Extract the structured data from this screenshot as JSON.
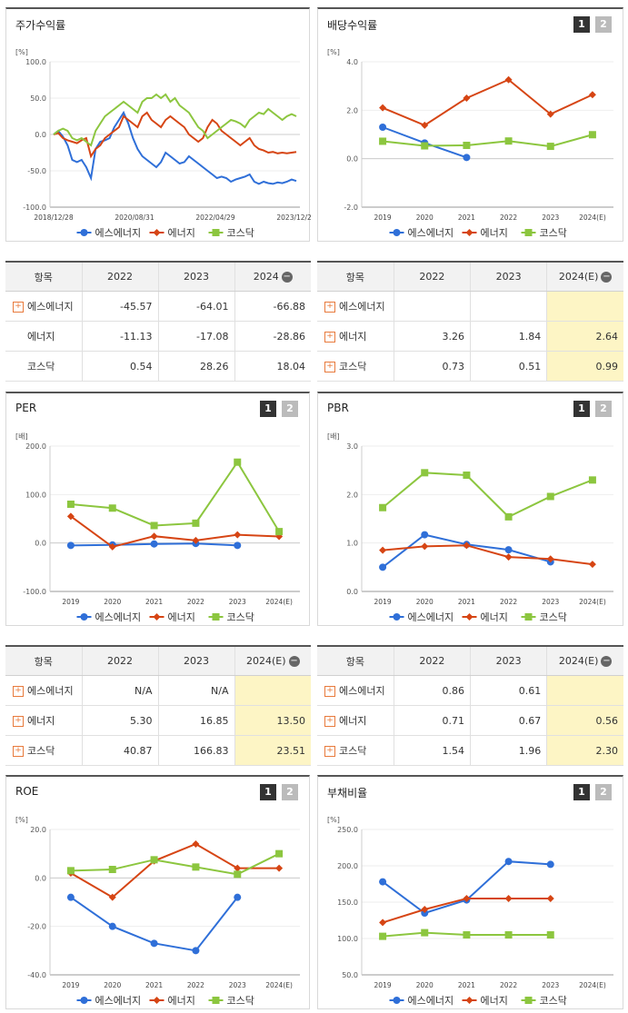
{
  "common": {
    "legend": [
      "에스에너지",
      "에너지",
      "코스닥"
    ],
    "colors": [
      "#2f6fd8",
      "#d64514",
      "#8cc63f"
    ],
    "tab1": "1",
    "tab2": "2"
  },
  "panels": {
    "p1": {
      "title": "주가수익률"
    },
    "p2": {
      "title": "배당수익률"
    },
    "p3": {
      "title": "PER"
    },
    "p4": {
      "title": "PBR"
    },
    "p5": {
      "title": "ROE"
    },
    "p6": {
      "title": "부채비율"
    }
  },
  "chart_data": [
    {
      "id": "c1",
      "type": "line",
      "title": "주가수익률",
      "ylabel": "[%]",
      "ylim": [
        -100,
        100
      ],
      "yticks": [
        "100.0",
        "50.0",
        "0.0",
        "-50.0",
        "-100.0"
      ],
      "xticks": [
        "2018/12/28",
        "2020/08/31",
        "2022/04/29",
        "2023/12/28"
      ],
      "series": [
        {
          "name": "에스에너지",
          "values": [
            0,
            5,
            -3,
            -15,
            -35,
            -38,
            -35,
            -45,
            -60,
            -20,
            -10,
            -8,
            -5,
            10,
            20,
            30,
            15,
            -5,
            -20,
            -30,
            -35,
            -40,
            -45,
            -38,
            -25,
            -30,
            -35,
            -40,
            -38,
            -30,
            -35,
            -40,
            -45,
            -50,
            -55,
            -60,
            -58,
            -60,
            -65,
            -62,
            -60,
            -58,
            -55,
            -65,
            -68,
            -65,
            -67,
            -68,
            -66,
            -67,
            -65,
            -62,
            -64
          ]
        },
        {
          "name": "에너지",
          "values": [
            0,
            2,
            -5,
            -8,
            -10,
            -12,
            -8,
            -5,
            -30,
            -20,
            -15,
            -5,
            0,
            5,
            10,
            25,
            20,
            15,
            10,
            25,
            30,
            20,
            15,
            10,
            20,
            25,
            20,
            15,
            10,
            0,
            -5,
            -10,
            -5,
            10,
            20,
            15,
            5,
            0,
            -5,
            -10,
            -15,
            -10,
            -5,
            -15,
            -20,
            -22,
            -25,
            -24,
            -26,
            -25,
            -26,
            -25,
            -24
          ]
        },
        {
          "name": "코스닥",
          "values": [
            0,
            5,
            8,
            5,
            -5,
            -8,
            -5,
            -10,
            -15,
            5,
            15,
            25,
            30,
            35,
            40,
            45,
            40,
            35,
            30,
            45,
            50,
            50,
            55,
            50,
            55,
            45,
            50,
            40,
            35,
            30,
            20,
            10,
            5,
            -5,
            0,
            5,
            10,
            15,
            20,
            18,
            15,
            10,
            20,
            25,
            30,
            28,
            35,
            30,
            25,
            20,
            25,
            28,
            25
          ]
        }
      ]
    },
    {
      "id": "c2",
      "type": "line",
      "title": "배당수익률",
      "ylabel": "[%]",
      "ylim": [
        -2,
        4
      ],
      "yticks": [
        "4.0",
        "2.0",
        "0.0",
        "-2.0"
      ],
      "categories": [
        "2019",
        "2020",
        "2021",
        "2022",
        "2023",
        "2024(E)"
      ],
      "series": [
        {
          "name": "에스에너지",
          "values": [
            1.3,
            0.65,
            0.05,
            null,
            null,
            null
          ]
        },
        {
          "name": "에너지",
          "values": [
            2.1,
            1.38,
            2.5,
            3.26,
            1.84,
            2.64
          ]
        },
        {
          "name": "코스닥",
          "values": [
            0.72,
            0.53,
            0.55,
            0.73,
            0.51,
            0.99
          ]
        }
      ]
    },
    {
      "id": "c3",
      "type": "line",
      "title": "PER",
      "ylabel": "[배]",
      "ylim": [
        -100,
        200
      ],
      "yticks": [
        "200.0",
        "100.0",
        "0.0",
        "-100.0"
      ],
      "categories": [
        "2019",
        "2020",
        "2021",
        "2022",
        "2023",
        "2024(E)"
      ],
      "series": [
        {
          "name": "에스에너지",
          "values": [
            -5,
            -4,
            -2,
            -1,
            -5,
            null
          ]
        },
        {
          "name": "에너지",
          "values": [
            55,
            -8,
            14,
            5.3,
            16.85,
            13.5
          ]
        },
        {
          "name": "코스닥",
          "values": [
            80,
            72,
            36,
            40.87,
            166.83,
            23.51
          ]
        }
      ]
    },
    {
      "id": "c4",
      "type": "line",
      "title": "PBR",
      "ylabel": "[배]",
      "ylim": [
        0,
        3
      ],
      "yticks": [
        "3.0",
        "2.0",
        "1.0",
        "0.0"
      ],
      "categories": [
        "2019",
        "2020",
        "2021",
        "2022",
        "2023",
        "2024(E)"
      ],
      "series": [
        {
          "name": "에스에너지",
          "values": [
            0.5,
            1.17,
            0.97,
            0.86,
            0.61,
            null
          ]
        },
        {
          "name": "에너지",
          "values": [
            0.85,
            0.93,
            0.95,
            0.71,
            0.67,
            0.56
          ]
        },
        {
          "name": "코스닥",
          "values": [
            1.73,
            2.45,
            2.4,
            1.54,
            1.96,
            2.3
          ]
        }
      ]
    },
    {
      "id": "c5",
      "type": "line",
      "title": "ROE",
      "ylabel": "[%]",
      "ylim": [
        -40,
        20
      ],
      "yticks": [
        "20.0",
        "0.0",
        "-20.0",
        "-40.0"
      ],
      "categories": [
        "2019",
        "2020",
        "2021",
        "2022",
        "2023",
        "2024(E)"
      ],
      "series": [
        {
          "name": "에스에너지",
          "values": [
            -8,
            -20,
            -27,
            -30,
            -8,
            null
          ]
        },
        {
          "name": "에너지",
          "values": [
            2,
            -8,
            7,
            14,
            4,
            4
          ]
        },
        {
          "name": "코스닥",
          "values": [
            3,
            3.5,
            7.5,
            4.5,
            1.5,
            10
          ]
        }
      ]
    },
    {
      "id": "c6",
      "type": "line",
      "title": "부채비율",
      "ylabel": "[%]",
      "ylim": [
        50,
        250
      ],
      "yticks": [
        "250.0",
        "200.0",
        "150.0",
        "100.0",
        "50.0"
      ],
      "categories": [
        "2019",
        "2020",
        "2021",
        "2022",
        "2023",
        "2024(E)"
      ],
      "series": [
        {
          "name": "에스에너지",
          "values": [
            178,
            135,
            153,
            206,
            202,
            null
          ]
        },
        {
          "name": "에너지",
          "values": [
            122,
            140,
            155,
            155,
            155,
            null
          ]
        },
        {
          "name": "코스닥",
          "values": [
            103,
            108,
            105,
            105,
            105,
            null
          ]
        }
      ]
    }
  ],
  "tables": {
    "t1": {
      "header": [
        "항목",
        "2022",
        "2023",
        "2024"
      ],
      "rows": [
        {
          "label": "에스에너지",
          "plus": true,
          "values": [
            "-45.57",
            "-64.01",
            "-66.88"
          ]
        },
        {
          "label": "에너지",
          "plus": false,
          "values": [
            "-11.13",
            "-17.08",
            "-28.86"
          ]
        },
        {
          "label": "코스닥",
          "plus": false,
          "values": [
            "0.54",
            "28.26",
            "18.04"
          ]
        }
      ]
    },
    "t2": {
      "header": [
        "항목",
        "2022",
        "2023",
        "2024(E)"
      ],
      "rows": [
        {
          "label": "에스에너지",
          "plus": true,
          "values": [
            "",
            "",
            ""
          ]
        },
        {
          "label": "에너지",
          "plus": true,
          "values": [
            "3.26",
            "1.84",
            "2.64"
          ]
        },
        {
          "label": "코스닥",
          "plus": true,
          "values": [
            "0.73",
            "0.51",
            "0.99"
          ]
        }
      ]
    },
    "t3": {
      "header": [
        "항목",
        "2022",
        "2023",
        "2024(E)"
      ],
      "rows": [
        {
          "label": "에스에너지",
          "plus": true,
          "values": [
            "N/A",
            "N/A",
            ""
          ]
        },
        {
          "label": "에너지",
          "plus": true,
          "values": [
            "5.30",
            "16.85",
            "13.50"
          ]
        },
        {
          "label": "코스닥",
          "plus": true,
          "values": [
            "40.87",
            "166.83",
            "23.51"
          ]
        }
      ]
    },
    "t4": {
      "header": [
        "항목",
        "2022",
        "2023",
        "2024(E)"
      ],
      "rows": [
        {
          "label": "에스에너지",
          "plus": true,
          "values": [
            "0.86",
            "0.61",
            ""
          ]
        },
        {
          "label": "에너지",
          "plus": true,
          "values": [
            "0.71",
            "0.67",
            "0.56"
          ]
        },
        {
          "label": "코스닥",
          "plus": true,
          "values": [
            "1.54",
            "1.96",
            "2.30"
          ]
        }
      ]
    }
  }
}
